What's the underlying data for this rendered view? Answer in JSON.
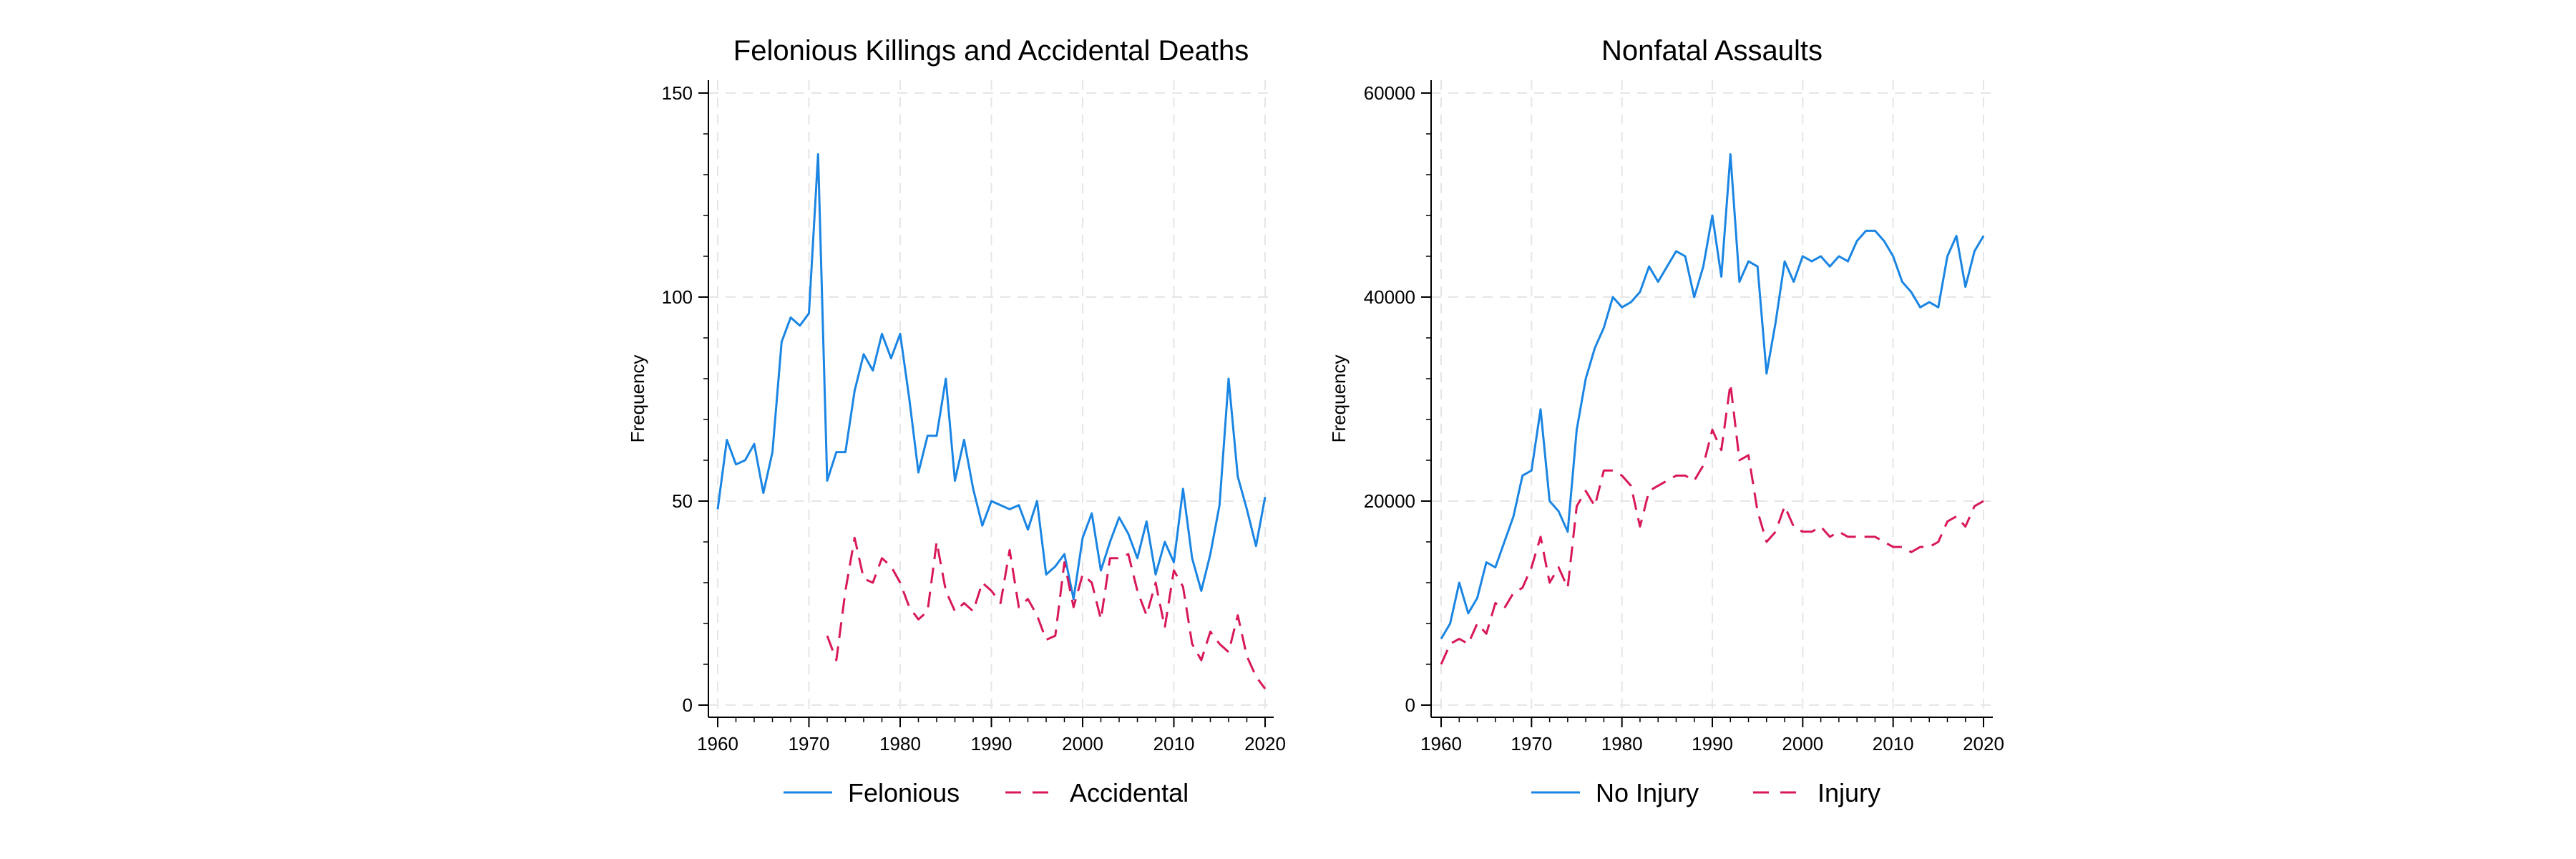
{
  "colors": {
    "blue": "#1a85e3",
    "red": "#d8185a",
    "axis": "#000000",
    "grid": "#e6e6e6"
  },
  "chart_data": [
    {
      "type": "line",
      "title": "Felonious Killings and Accidental Deaths",
      "xlabel": "",
      "ylabel": "Frequency",
      "xlim": [
        1960,
        2020
      ],
      "ylim": [
        0,
        150
      ],
      "xticks": [
        1960,
        1970,
        1980,
        1990,
        2000,
        2010,
        2020
      ],
      "yticks": [
        0,
        50,
        100,
        150
      ],
      "ytick_labels": [
        "0",
        "50",
        "100",
        "150"
      ],
      "grid": true,
      "legend": "bottom",
      "series": [
        {
          "name": "Felonious",
          "style": "solid",
          "color": "#1a85e3",
          "x": [
            1960,
            1961,
            1962,
            1963,
            1964,
            1965,
            1966,
            1967,
            1968,
            1969,
            1970,
            1971,
            1972,
            1973,
            1974,
            1975,
            1976,
            1977,
            1978,
            1979,
            1980,
            1981,
            1982,
            1983,
            1984,
            1985,
            1986,
            1987,
            1988,
            1989,
            1990,
            1991,
            1992,
            1993,
            1994,
            1995,
            1996,
            1997,
            1998,
            1999,
            2000,
            2001,
            2002,
            2003,
            2004,
            2005,
            2006,
            2007,
            2008,
            2009,
            2010,
            2011,
            2012,
            2013,
            2014,
            2015,
            2016,
            2017,
            2018,
            2019,
            2020
          ],
          "y": [
            48,
            65,
            59,
            60,
            64,
            52,
            62,
            89,
            95,
            93,
            96,
            135,
            55,
            62,
            62,
            77,
            86,
            82,
            91,
            85,
            91,
            75,
            57,
            66,
            66,
            80,
            55,
            65,
            53,
            44,
            50,
            49,
            48,
            49,
            43,
            50,
            32,
            34,
            37,
            26,
            41,
            47,
            33,
            40,
            46,
            42,
            36,
            45,
            32,
            40,
            35,
            53,
            36,
            28,
            37,
            49,
            80,
            56,
            48,
            39,
            51
          ]
        },
        {
          "name": "Accidental",
          "style": "dashed",
          "color": "#d8185a",
          "x": [
            1972,
            1973,
            1974,
            1975,
            1976,
            1977,
            1978,
            1979,
            1980,
            1981,
            1982,
            1983,
            1984,
            1985,
            1986,
            1987,
            1988,
            1989,
            1990,
            1991,
            1992,
            1993,
            1994,
            1995,
            1996,
            1997,
            1998,
            1999,
            2000,
            2001,
            2002,
            2003,
            2004,
            2005,
            2006,
            2007,
            2008,
            2009,
            2010,
            2011,
            2012,
            2013,
            2014,
            2015,
            2016,
            2017,
            2018,
            2019,
            2020
          ],
          "y": [
            17,
            11,
            28,
            41,
            31,
            30,
            36,
            34,
            30,
            24,
            21,
            23,
            40,
            28,
            23,
            25,
            23,
            30,
            28,
            25,
            38,
            24,
            26,
            22,
            16,
            17,
            35,
            24,
            32,
            30,
            21,
            36,
            36,
            37,
            28,
            22,
            30,
            19,
            33,
            29,
            15,
            11,
            18,
            15,
            13,
            22,
            12,
            7,
            4
          ]
        }
      ]
    },
    {
      "type": "line",
      "title": "Nonfatal Assaults",
      "xlabel": "",
      "ylabel": "Frequency",
      "xlim": [
        1960,
        2020
      ],
      "ylim": [
        0,
        60000
      ],
      "xticks": [
        1960,
        1970,
        1980,
        1990,
        2000,
        2010,
        2020
      ],
      "yticks": [
        0,
        20000,
        40000,
        60000
      ],
      "ytick_labels": [
        "0",
        "20000",
        "40000",
        "60000"
      ],
      "grid": true,
      "legend": "bottom",
      "series": [
        {
          "name": "No Injury",
          "style": "solid",
          "color": "#1a85e3",
          "x": [
            1960,
            1961,
            1962,
            1963,
            1964,
            1965,
            1966,
            1967,
            1968,
            1969,
            1970,
            1971,
            1972,
            1973,
            1974,
            1975,
            1976,
            1977,
            1978,
            1979,
            1980,
            1981,
            1982,
            1983,
            1984,
            1985,
            1986,
            1987,
            1988,
            1989,
            1990,
            1991,
            1992,
            1993,
            1994,
            1995,
            1996,
            1997,
            1998,
            1999,
            2000,
            2001,
            2002,
            2003,
            2004,
            2005,
            2006,
            2007,
            2008,
            2009,
            2010,
            2011,
            2012,
            2013,
            2014,
            2015,
            2016,
            2017,
            2018,
            2019,
            2020
          ],
          "y": [
            6500,
            8000,
            12000,
            9000,
            10500,
            14000,
            13500,
            16000,
            18500,
            22500,
            23000,
            29000,
            20000,
            19000,
            17000,
            27000,
            32000,
            35000,
            37000,
            40000,
            39000,
            39500,
            40500,
            43000,
            41500,
            43000,
            44500,
            44000,
            40000,
            43000,
            48000,
            42000,
            54000,
            41500,
            43500,
            43000,
            32500,
            37500,
            43500,
            41500,
            44000,
            43500,
            44000,
            43000,
            44000,
            43500,
            45500,
            46500,
            46500,
            45500,
            44000,
            41500,
            40500,
            39000,
            39500,
            39000,
            44000,
            46000,
            41000,
            44500,
            46000
          ]
        },
        {
          "name": "Injury",
          "style": "dashed",
          "color": "#d8185a",
          "x": [
            1960,
            1961,
            1962,
            1963,
            1964,
            1965,
            1966,
            1967,
            1968,
            1969,
            1970,
            1971,
            1972,
            1973,
            1974,
            1975,
            1976,
            1977,
            1978,
            1979,
            1980,
            1981,
            1982,
            1983,
            1984,
            1985,
            1986,
            1987,
            1988,
            1989,
            1990,
            1991,
            1992,
            1993,
            1994,
            1995,
            1996,
            1997,
            1998,
            1999,
            2000,
            2001,
            2002,
            2003,
            2004,
            2005,
            2006,
            2007,
            2008,
            2009,
            2010,
            2011,
            2012,
            2013,
            2014,
            2015,
            2016,
            2017,
            2018,
            2019,
            2020
          ],
          "y": [
            4000,
            6000,
            6500,
            6000,
            8000,
            7000,
            10000,
            9500,
            11000,
            11500,
            13500,
            16500,
            12000,
            13500,
            11500,
            19500,
            21000,
            19500,
            23000,
            23000,
            22500,
            21500,
            17500,
            21000,
            21500,
            22000,
            22500,
            22500,
            22000,
            23500,
            27000,
            25000,
            31500,
            24000,
            24500,
            19000,
            16000,
            17000,
            19500,
            17500,
            17000,
            17000,
            17500,
            16500,
            17000,
            16500,
            16500,
            16500,
            16500,
            16000,
            15500,
            15500,
            15000,
            15500,
            15500,
            16000,
            18000,
            18500,
            17500,
            19500,
            20000
          ]
        }
      ]
    }
  ]
}
